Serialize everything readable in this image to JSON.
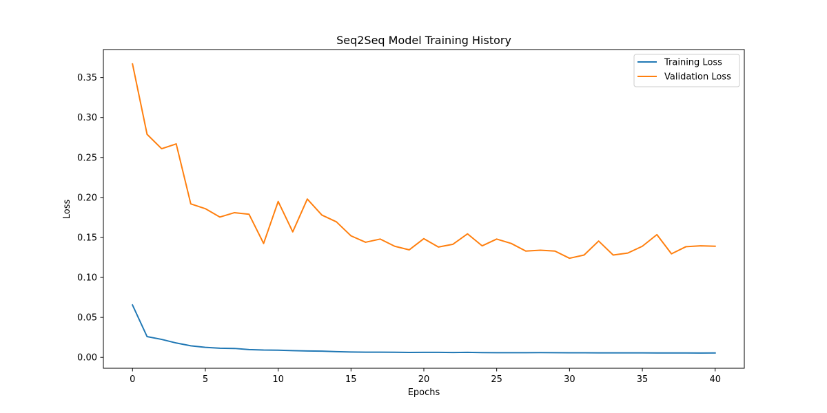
{
  "chart_data": {
    "type": "line",
    "title": "Seq2Seq Model Training History",
    "xlabel": "Epochs",
    "ylabel": "Loss",
    "xlim": [
      -2,
      42
    ],
    "ylim": [
      -0.0136,
      0.385
    ],
    "xticks": [
      0,
      5,
      10,
      15,
      20,
      25,
      30,
      35,
      40
    ],
    "xtick_labels": [
      "0",
      "5",
      "10",
      "15",
      "20",
      "25",
      "30",
      "35",
      "40"
    ],
    "yticks": [
      0.0,
      0.05,
      0.1,
      0.15,
      0.2,
      0.25,
      0.3,
      0.35
    ],
    "ytick_labels": [
      "0.00",
      "0.05",
      "0.10",
      "0.15",
      "0.20",
      "0.25",
      "0.30",
      "0.35"
    ],
    "grid": false,
    "legend_position": "top-right",
    "x": [
      0,
      1,
      2,
      3,
      4,
      5,
      6,
      7,
      8,
      9,
      10,
      11,
      12,
      13,
      14,
      15,
      16,
      17,
      18,
      19,
      20,
      21,
      22,
      23,
      24,
      25,
      26,
      27,
      28,
      29,
      30,
      31,
      32,
      33,
      34,
      35,
      36,
      37,
      38,
      39,
      40
    ],
    "series": [
      {
        "name": "Training Loss",
        "color": "#1f77b4",
        "values": [
          0.0655,
          0.026,
          0.0225,
          0.018,
          0.0145,
          0.0125,
          0.0115,
          0.0112,
          0.0098,
          0.0092,
          0.009,
          0.0085,
          0.008,
          0.0078,
          0.0072,
          0.0067,
          0.0065,
          0.0065,
          0.0064,
          0.0062,
          0.0063,
          0.0063,
          0.0061,
          0.0063,
          0.006,
          0.0059,
          0.0059,
          0.0059,
          0.006,
          0.0059,
          0.0058,
          0.0058,
          0.0057,
          0.0057,
          0.0057,
          0.0057,
          0.0056,
          0.0056,
          0.0055,
          0.0054,
          0.0055
        ]
      },
      {
        "name": "Validation Loss",
        "color": "#ff7f0e",
        "values": [
          0.367,
          0.279,
          0.261,
          0.267,
          0.192,
          0.186,
          0.1755,
          0.181,
          0.179,
          0.1425,
          0.195,
          0.157,
          0.198,
          0.178,
          0.1695,
          0.152,
          0.144,
          0.148,
          0.139,
          0.1345,
          0.1485,
          0.138,
          0.1415,
          0.1545,
          0.1395,
          0.148,
          0.1425,
          0.133,
          0.134,
          0.133,
          0.124,
          0.128,
          0.1455,
          0.128,
          0.1305,
          0.139,
          0.1535,
          0.1295,
          0.1385,
          0.1395,
          0.139
        ]
      }
    ]
  }
}
